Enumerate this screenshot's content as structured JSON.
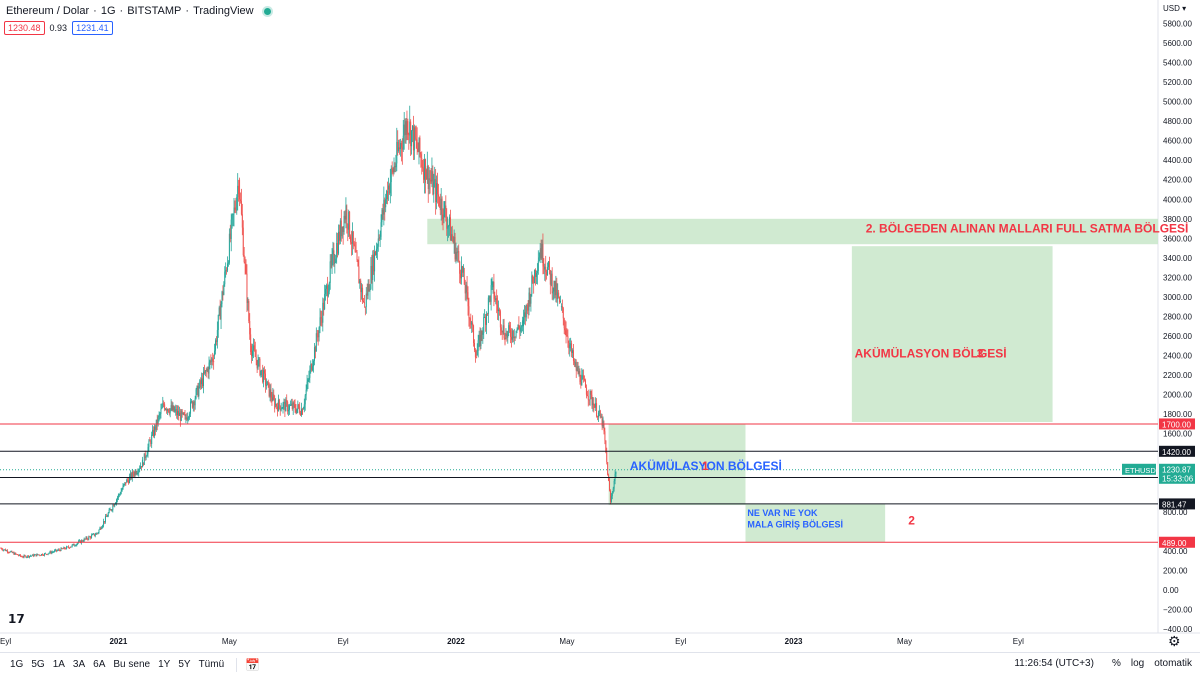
{
  "header": {
    "symbol": "Ethereum / Dolar",
    "interval": "1G",
    "exchange": "BITSTAMP",
    "source": "TradingView",
    "bid": "1230.48",
    "spread": "0.93",
    "ask": "1231.41"
  },
  "currency_label": "USD",
  "chart_data": {
    "type": "candlestick",
    "symbol": "ETHUSD",
    "price_axis_labels": [
      "5800.00",
      "5600.00",
      "5400.00",
      "5200.00",
      "5000.00",
      "4800.00",
      "4600.00",
      "4400.00",
      "4200.00",
      "4000.00",
      "3800.00",
      "3600.00",
      "3400.00",
      "3200.00",
      "3000.00",
      "2800.00",
      "2600.00",
      "2400.00",
      "2200.00",
      "2000.00",
      "1800.00",
      "1600.00",
      "800.00",
      "400.00",
      "200.00",
      "0.00",
      "−200.00",
      "−400.00"
    ],
    "price_axis_values": [
      5800,
      5600,
      5400,
      5200,
      5000,
      4800,
      4600,
      4400,
      4200,
      4000,
      3800,
      3600,
      3400,
      3200,
      3000,
      2800,
      2600,
      2400,
      2200,
      2000,
      1800,
      1600,
      800,
      400,
      200,
      0,
      -200,
      -400
    ],
    "y_range": [
      -440,
      6040
    ],
    "time_axis": [
      {
        "label": "Eyl",
        "date": "2020-09-01"
      },
      {
        "label": "2021",
        "date": "2021-01-01"
      },
      {
        "label": "May",
        "date": "2021-05-01"
      },
      {
        "label": "Eyl",
        "date": "2021-09-01"
      },
      {
        "label": "2022",
        "date": "2022-01-01"
      },
      {
        "label": "May",
        "date": "2022-05-01"
      },
      {
        "label": "Eyl",
        "date": "2022-09-01"
      },
      {
        "label": "2023",
        "date": "2023-01-01"
      },
      {
        "label": "May",
        "date": "2023-05-01"
      },
      {
        "label": "Eyl",
        "date": "2023-09-01"
      }
    ],
    "x_range": [
      "2020-08-26",
      "2024-01-30"
    ],
    "price_path": [
      {
        "date": "2020-08-27",
        "price": 430
      },
      {
        "date": "2020-09-20",
        "price": 340
      },
      {
        "date": "2020-10-15",
        "price": 370
      },
      {
        "date": "2020-11-10",
        "price": 440
      },
      {
        "date": "2020-12-10",
        "price": 580
      },
      {
        "date": "2021-01-10",
        "price": 1100
      },
      {
        "date": "2021-01-28",
        "price": 1300
      },
      {
        "date": "2021-02-20",
        "price": 1900
      },
      {
        "date": "2021-03-15",
        "price": 1750
      },
      {
        "date": "2021-04-15",
        "price": 2400
      },
      {
        "date": "2021-05-12",
        "price": 4200
      },
      {
        "date": "2021-05-25",
        "price": 2500
      },
      {
        "date": "2021-06-20",
        "price": 1900
      },
      {
        "date": "2021-07-20",
        "price": 1850
      },
      {
        "date": "2021-08-20",
        "price": 3300
      },
      {
        "date": "2021-09-05",
        "price": 3900
      },
      {
        "date": "2021-09-25",
        "price": 2900
      },
      {
        "date": "2021-10-20",
        "price": 4100
      },
      {
        "date": "2021-11-10",
        "price": 4800
      },
      {
        "date": "2021-11-30",
        "price": 4300
      },
      {
        "date": "2021-12-20",
        "price": 3900
      },
      {
        "date": "2022-01-10",
        "price": 3200
      },
      {
        "date": "2022-01-24",
        "price": 2400
      },
      {
        "date": "2022-02-10",
        "price": 3100
      },
      {
        "date": "2022-02-24",
        "price": 2600
      },
      {
        "date": "2022-03-15",
        "price": 2700
      },
      {
        "date": "2022-04-03",
        "price": 3500
      },
      {
        "date": "2022-04-25",
        "price": 2900
      },
      {
        "date": "2022-05-10",
        "price": 2300
      },
      {
        "date": "2022-05-31",
        "price": 1900
      },
      {
        "date": "2022-06-10",
        "price": 1700
      },
      {
        "date": "2022-06-18",
        "price": 900
      },
      {
        "date": "2022-06-24",
        "price": 1230.87
      }
    ],
    "horizontal_lines": [
      {
        "value": 1700,
        "label": "1700.00",
        "color": "#f23645"
      },
      {
        "value": 1420,
        "label": "1420.00",
        "color": "#131722"
      },
      {
        "value": 1152.05,
        "label": "1152.05",
        "color": "#131722"
      },
      {
        "value": 881.47,
        "label": "881.47",
        "color": "#131722"
      },
      {
        "value": 489,
        "label": "489.00",
        "color": "#f23645"
      }
    ],
    "last_price": {
      "symbol": "ETHUSD",
      "value": "1230.87",
      "countdown": "15:33:06",
      "color": "#22ab94"
    },
    "zones": [
      {
        "from": "2021-12-01",
        "to": "2024-01-30",
        "low": 3540,
        "high": 3800,
        "color": "#c8e6c9"
      },
      {
        "from": "2022-06-15",
        "to": "2022-11-10",
        "low": 870,
        "high": 1700,
        "color": "#c8e6c9"
      },
      {
        "from": "2022-11-10",
        "to": "2023-04-10",
        "low": 489,
        "high": 881.47,
        "color": "#c8e6c9"
      },
      {
        "from": "2023-03-05",
        "to": "2023-10-08",
        "low": 1720,
        "high": 3520,
        "color": "#c8e6c9"
      }
    ],
    "annotations": [
      {
        "text": "2. BÖLGEDEN ALINAN MALLARI FULL SATMA BÖLGESİ",
        "color": "#f23645",
        "date": "2023-03-20",
        "price": 3660
      },
      {
        "text": "AKÜMÜLASYON BÖLGESİ",
        "color": "#f23645",
        "date": "2023-03-08",
        "price": 2380
      },
      {
        "text": "3",
        "color": "#f23645",
        "date": "2023-07-18",
        "price": 2380
      },
      {
        "text": "AKÜMÜLASYON BÖLGESİ",
        "color": "#2962ff",
        "date": "2022-07-08",
        "price": 1230
      },
      {
        "text": "1",
        "color": "#f23645",
        "date": "2022-09-24",
        "price": 1230
      },
      {
        "text": "NE VAR NE YOK",
        "color": "#2962ff",
        "date": "2022-11-12",
        "price": 760
      },
      {
        "text": "MALA GİRİŞ BÖLGESİ",
        "color": "#2962ff",
        "date": "2022-11-12",
        "price": 640
      },
      {
        "text": "2",
        "color": "#f23645",
        "date": "2023-05-05",
        "price": 670
      }
    ],
    "colors": {
      "up": "#26a69a",
      "down": "#ef5350"
    }
  },
  "bottombar": {
    "timeframes": [
      "1G",
      "5G",
      "1A",
      "3A",
      "6A",
      "Bu sene",
      "1Y",
      "5Y",
      "Tümü"
    ],
    "clock": "11:26:54 (UTC+3)",
    "percent": "%",
    "log": "log",
    "auto": "otomatik"
  }
}
